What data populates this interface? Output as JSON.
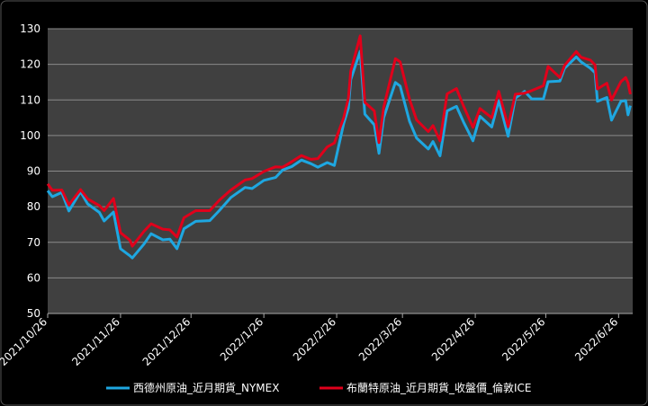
{
  "chart_data": {
    "type": "line",
    "x": [
      "2021/10/26",
      "2021/10/28",
      "2021/11/1",
      "2021/11/4",
      "2021/11/9",
      "2021/11/12",
      "2021/11/17",
      "2021/11/19",
      "2021/11/23",
      "2021/11/26",
      "2021/11/30",
      "2021/12/1",
      "2021/12/6",
      "2021/12/9",
      "2021/12/14",
      "2021/12/17",
      "2021/12/20",
      "2021/12/23",
      "2021/12/28",
      "2022/1/3",
      "2022/1/7",
      "2022/1/12",
      "2022/1/18",
      "2022/1/21",
      "2022/1/26",
      "2022/1/31",
      "2022/2/3",
      "2022/2/7",
      "2022/2/11",
      "2022/2/15",
      "2022/2/18",
      "2022/2/22",
      "2022/2/25",
      "2022/3/1",
      "2022/3/3",
      "2022/3/4",
      "2022/3/8",
      "2022/3/10",
      "2022/3/14",
      "2022/3/16",
      "2022/3/18",
      "2022/3/23",
      "2022/3/25",
      "2022/3/29",
      "2022/4/1",
      "2022/4/6",
      "2022/4/8",
      "2022/4/11",
      "2022/4/14",
      "2022/4/18",
      "2022/4/21",
      "2022/4/25",
      "2022/4/28",
      "2022/5/3",
      "2022/5/6",
      "2022/5/10",
      "2022/5/13",
      "2022/5/17",
      "2022/5/20",
      "2022/5/25",
      "2022/5/27",
      "2022/6/1",
      "2022/6/3",
      "2022/6/8",
      "2022/6/10",
      "2022/6/14",
      "2022/6/16",
      "2022/6/17",
      "2022/6/21",
      "2022/6/23",
      "2022/6/27",
      "2022/6/29",
      "2022/6/30",
      "2022/7/1"
    ],
    "series": [
      {
        "name": "西德州原油_近月期貨_NYMEX",
        "color": "#1ea7e1",
        "values": [
          84.5,
          82.8,
          84,
          78.8,
          84.2,
          80.8,
          78.4,
          76,
          78.5,
          68.2,
          66.2,
          65.6,
          69.5,
          72.4,
          70.7,
          70.9,
          68.2,
          73.8,
          75.9,
          76.1,
          78.9,
          82.6,
          85.4,
          85.1,
          87.4,
          88.2,
          90.3,
          91.3,
          93.1,
          92.1,
          91.1,
          92.4,
          91.6,
          103.4,
          107.7,
          115.7,
          123.7,
          106,
          103,
          95,
          105,
          114.9,
          113.9,
          104,
          99.3,
          96.2,
          98.3,
          94.3,
          106.9,
          108.2,
          103.8,
          98.5,
          105.4,
          102.4,
          109.8,
          99.8,
          110.5,
          112.4,
          110.3,
          110.3,
          115.1,
          115.3,
          118.9,
          122.1,
          120.7,
          118.9,
          117.6,
          109.6,
          110.7,
          104.3,
          109.6,
          109.8,
          105.8,
          108.4
        ]
      },
      {
        "name": "布蘭特原油_近月期貨_收盤價_倫敦ICE",
        "color": "#e0001b",
        "values": [
          86.4,
          84.6,
          84.7,
          80.5,
          84.8,
          82.2,
          80.3,
          78.9,
          82.3,
          72.7,
          70.6,
          68.9,
          73.1,
          75.2,
          73.7,
          73.5,
          71.5,
          76.9,
          78.9,
          78.9,
          81.8,
          84.7,
          87.5,
          87.9,
          89.9,
          91.2,
          91.1,
          92.7,
          94.4,
          93.3,
          93.5,
          96.8,
          97.9,
          105,
          110.5,
          118.1,
          128,
          109.3,
          106.9,
          98,
          107.9,
          121.6,
          120.7,
          110.2,
          104.4,
          101.1,
          102.8,
          98.5,
          111.7,
          113.2,
          108.3,
          102.3,
          107.6,
          105,
          112.4,
          102.5,
          111.6,
          111.9,
          112.6,
          114,
          119.4,
          116.3,
          119.7,
          123.6,
          122,
          121.2,
          119.8,
          113.1,
          114.7,
          110,
          115.1,
          116.3,
          114.8,
          111.6
        ]
      }
    ],
    "xlim": [
      "2021/10/26",
      "2022/7/2"
    ],
    "xticks": [
      "2021/10/26",
      "2021/11/26",
      "2021/12/26",
      "2022/1/26",
      "2022/2/26",
      "2022/3/26",
      "2022/4/26",
      "2022/5/26",
      "2022/6/26"
    ],
    "ylim": [
      50,
      130
    ],
    "yticks": [
      50,
      60,
      70,
      80,
      90,
      100,
      110,
      120,
      130
    ],
    "grid": true
  }
}
